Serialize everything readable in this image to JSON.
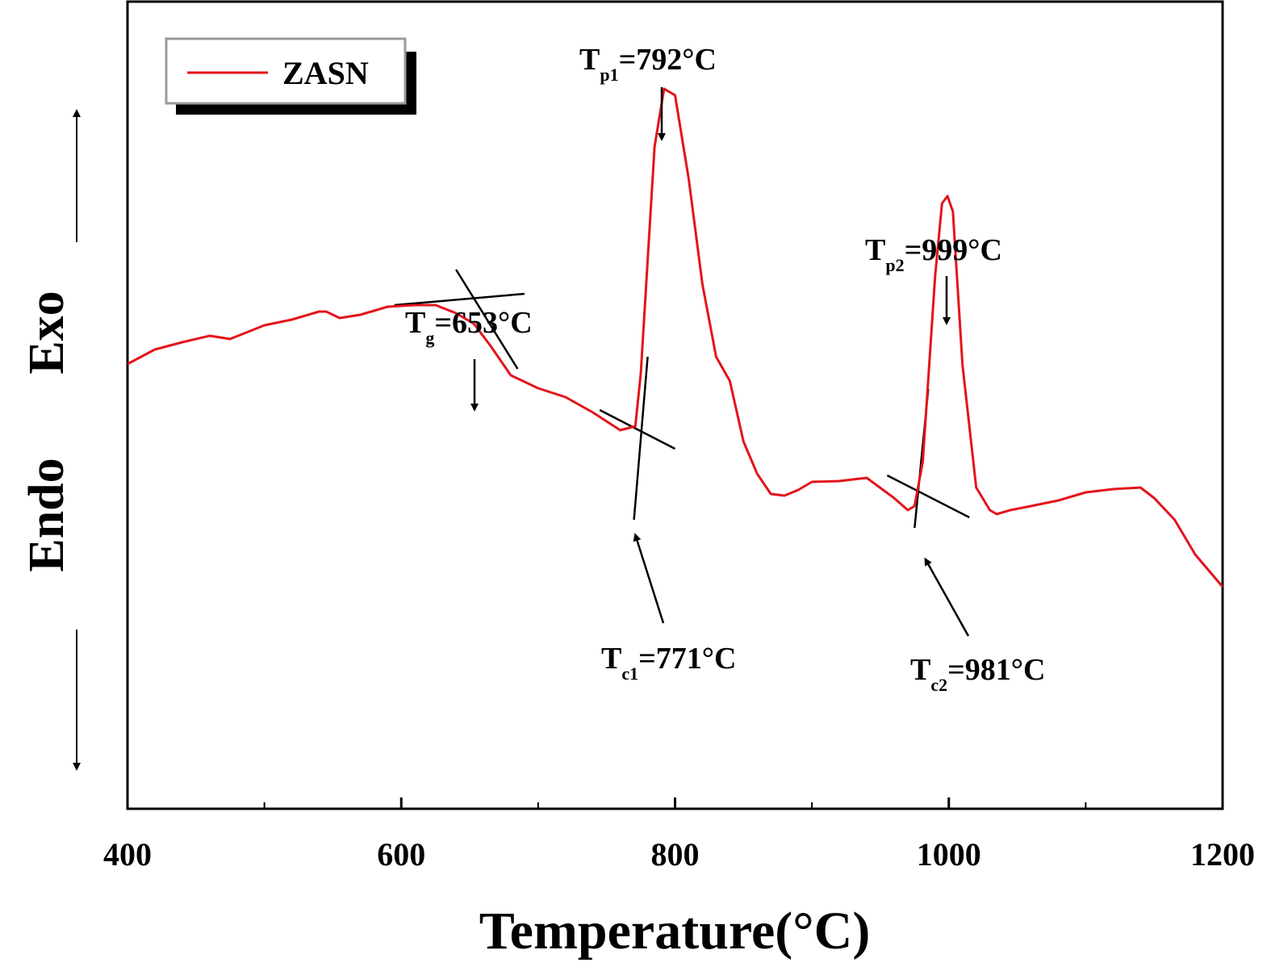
{
  "chart_data": {
    "type": "line",
    "title": "",
    "xlabel": "Temperature(°C)",
    "ylabel": {
      "endo": "Endo",
      "exo": "Exo"
    },
    "xlim": [
      400,
      1200
    ],
    "ylim": [
      0,
      1
    ],
    "x_ticks": [
      400,
      600,
      800,
      1000,
      1200
    ],
    "x_tick_labels": [
      "400",
      "600",
      "800",
      "1000",
      "1200"
    ],
    "x_minor_ticks": [
      500,
      700,
      900,
      1100
    ],
    "y_ticks_shown": false,
    "grid": false,
    "legend": {
      "position": "top-left",
      "entries": [
        "ZASN"
      ]
    },
    "colors": {
      "series": "#e3141b",
      "tangent": "#000000",
      "frame": "#000000"
    },
    "series": [
      {
        "name": "ZASN",
        "x": [
          400,
          420,
          440,
          460,
          475,
          500,
          520,
          540,
          545,
          555,
          570,
          590,
          610,
          625,
          640,
          653,
          665,
          680,
          700,
          720,
          740,
          760,
          771,
          775,
          780,
          785,
          792,
          800,
          810,
          820,
          830,
          840,
          850,
          860,
          870,
          880,
          890,
          900,
          920,
          940,
          960,
          970,
          975,
          981,
          990,
          995,
          999,
          1003,
          1010,
          1020,
          1030,
          1035,
          1045,
          1060,
          1080,
          1100,
          1120,
          1140,
          1150,
          1165,
          1180,
          1200
        ],
        "y": [
          0.551,
          0.569,
          0.578,
          0.586,
          0.582,
          0.599,
          0.606,
          0.616,
          0.616,
          0.608,
          0.612,
          0.622,
          0.624,
          0.624,
          0.614,
          0.601,
          0.574,
          0.537,
          0.521,
          0.51,
          0.491,
          0.469,
          0.474,
          0.54,
          0.68,
          0.82,
          0.892,
          0.884,
          0.78,
          0.65,
          0.56,
          0.53,
          0.455,
          0.415,
          0.39,
          0.388,
          0.395,
          0.405,
          0.406,
          0.41,
          0.385,
          0.37,
          0.375,
          0.43,
          0.66,
          0.75,
          0.759,
          0.74,
          0.55,
          0.398,
          0.37,
          0.365,
          0.37,
          0.375,
          0.382,
          0.392,
          0.396,
          0.398,
          0.385,
          0.358,
          0.315,
          0.275
        ]
      }
    ],
    "tangents": [
      {
        "x": [
          595,
          690
        ],
        "y": [
          0.624,
          0.638
        ]
      },
      {
        "x": [
          640,
          685
        ],
        "y": [
          0.668,
          0.545
        ]
      },
      {
        "x": [
          745,
          800
        ],
        "y": [
          0.494,
          0.446
        ]
      },
      {
        "x": [
          770,
          780
        ],
        "y": [
          0.358,
          0.56
        ]
      },
      {
        "x": [
          955,
          1015
        ],
        "y": [
          0.413,
          0.361
        ]
      },
      {
        "x": [
          975,
          985
        ],
        "y": [
          0.348,
          0.52
        ]
      }
    ],
    "annotations": [
      {
        "main": "T",
        "sub": "g",
        "rest": "=653°C",
        "value": 653
      },
      {
        "main": "T",
        "sub": "c1",
        "rest": "=771°C",
        "value": 771
      },
      {
        "main": "T",
        "sub": "p1",
        "rest": "=792°C",
        "value": 792
      },
      {
        "main": "T",
        "sub": "c2",
        "rest": "=981°C",
        "value": 981
      },
      {
        "main": "T",
        "sub": "p2",
        "rest": "=999°C",
        "value": 999
      }
    ]
  }
}
